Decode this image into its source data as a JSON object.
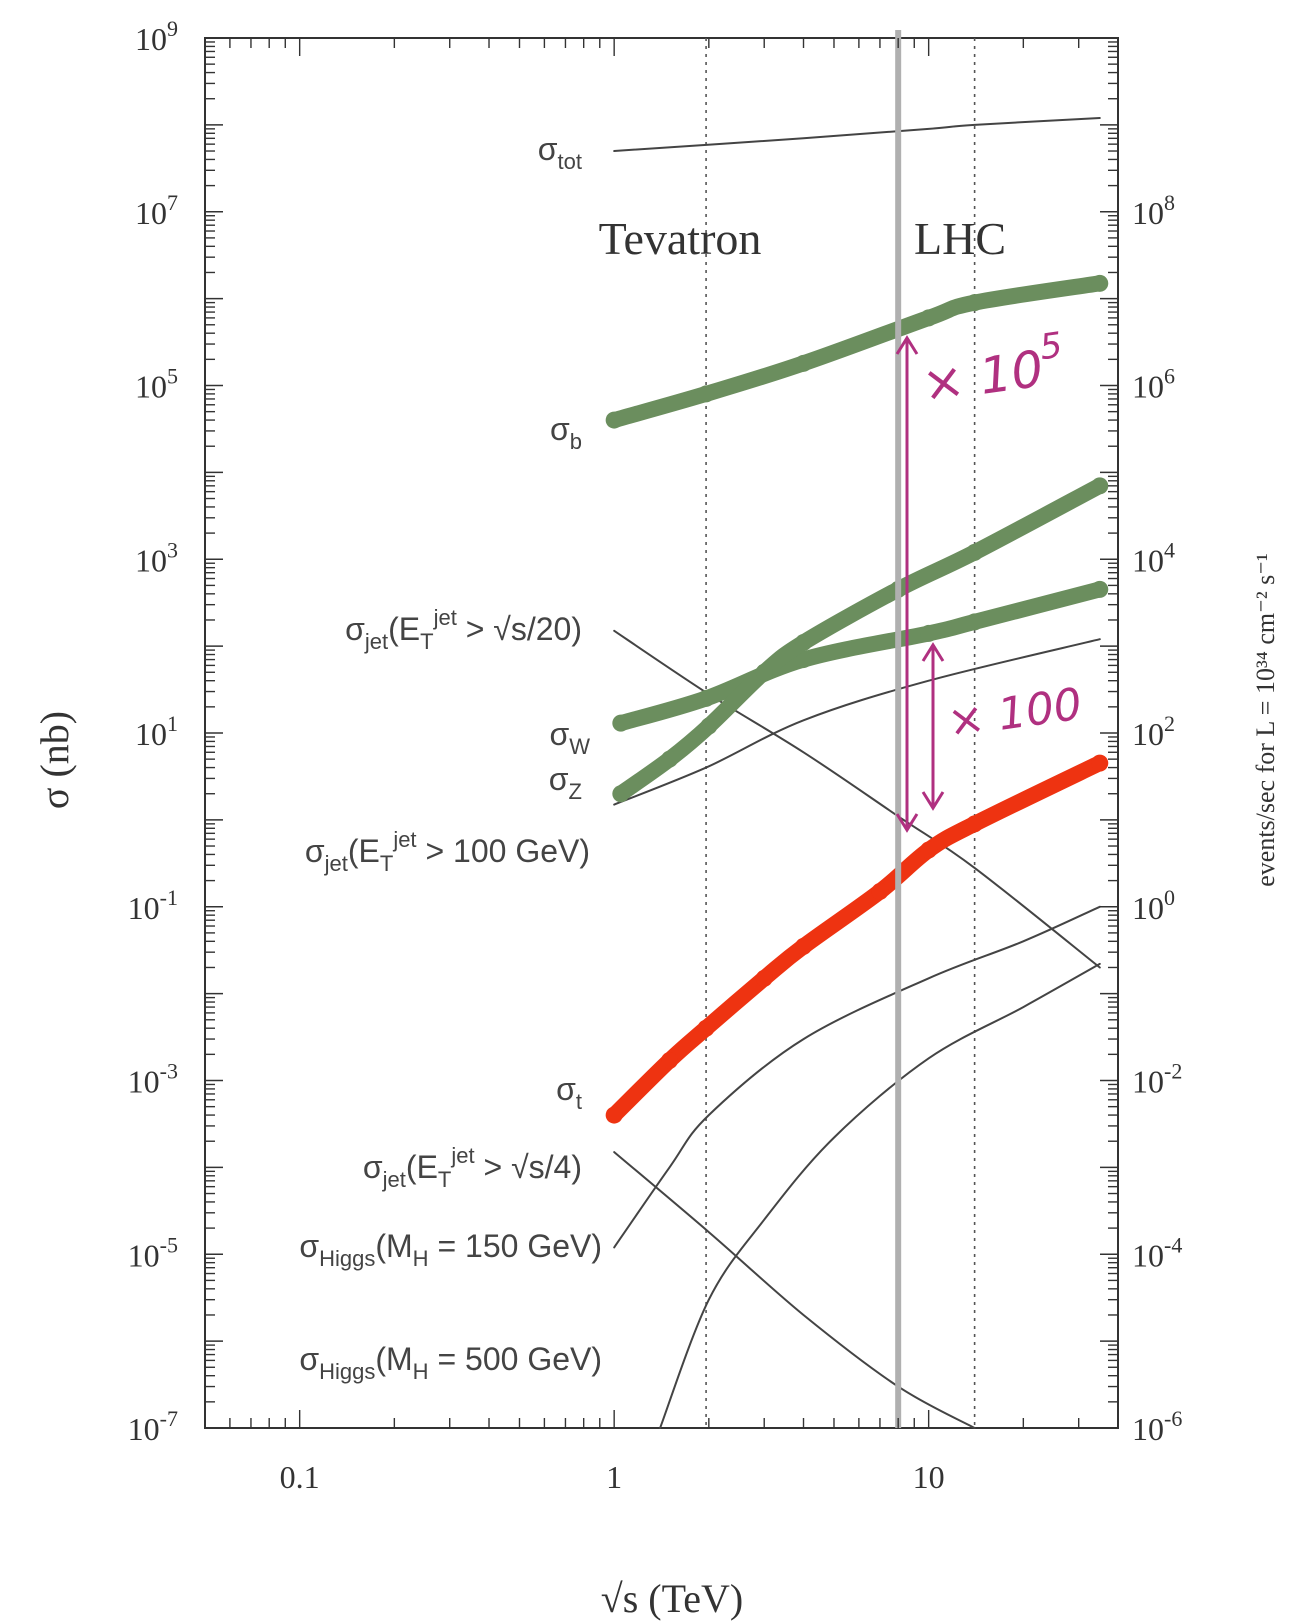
{
  "colors": {
    "axis": "#333333",
    "theory_line": "#444444",
    "green_band": "#6b8e5e",
    "red_band": "#ee3311",
    "annotation": "#b03080",
    "energy_line": "#b0b0b0",
    "divider": "#555555"
  },
  "chart_data": {
    "type": "line",
    "x_scale": "log",
    "y_scale": "log",
    "xlim": [
      0.05,
      40
    ],
    "ylim": [
      1e-07,
      1000000000.0
    ],
    "xlabel": "√s   (TeV)",
    "ylabel": "σ  (nb)",
    "y2label": "events/sec for  L = 10³⁴ cm⁻² s⁻¹",
    "x_ticks": [
      {
        "value": 0.1,
        "label": "0.1"
      },
      {
        "value": 1,
        "label": "1"
      },
      {
        "value": 10,
        "label": "10"
      }
    ],
    "y_ticks": [
      {
        "value": 1000000000.0,
        "base": "10",
        "exp": "9"
      },
      {
        "value": 10000000.0,
        "base": "10",
        "exp": "7"
      },
      {
        "value": 100000.0,
        "base": "10",
        "exp": "5"
      },
      {
        "value": 1000.0,
        "base": "10",
        "exp": "3"
      },
      {
        "value": 10,
        "base": "10",
        "exp": "1"
      },
      {
        "value": 0.1,
        "base": "10",
        "exp": "-1"
      },
      {
        "value": 0.001,
        "base": "10",
        "exp": "-3"
      },
      {
        "value": 1e-05,
        "base": "10",
        "exp": "-5"
      },
      {
        "value": 1e-07,
        "base": "10",
        "exp": "-7"
      }
    ],
    "y2_ticks": [
      {
        "value": 10000000.0,
        "base": "10",
        "exp": "8"
      },
      {
        "value": 100000.0,
        "base": "10",
        "exp": "6"
      },
      {
        "value": 1000.0,
        "base": "10",
        "exp": "4"
      },
      {
        "value": 10,
        "base": "10",
        "exp": "2"
      },
      {
        "value": 0.1,
        "base": "10",
        "exp": "0"
      },
      {
        "value": 0.001,
        "base": "10",
        "exp": "-2"
      },
      {
        "value": 1e-05,
        "base": "10",
        "exp": "-4"
      },
      {
        "value": 1e-07,
        "base": "10",
        "exp": "-6"
      }
    ],
    "regions": [
      {
        "label": "Tevatron",
        "x": 1.96
      },
      {
        "label": "LHC",
        "x": 14
      }
    ],
    "energy_line_x": 8,
    "series": [
      {
        "id": "sigma-tot",
        "style": "thin",
        "points": [
          [
            1,
            50000000.0
          ],
          [
            4,
            70000000.0
          ],
          [
            10,
            90000000.0
          ],
          [
            14,
            100000000.0
          ],
          [
            35,
            120000000.0
          ]
        ]
      },
      {
        "id": "sigma-jet-s20",
        "style": "thin",
        "points": [
          [
            1,
            150
          ],
          [
            2,
            28
          ],
          [
            4,
            6
          ],
          [
            8,
            1.1
          ],
          [
            14,
            0.28
          ],
          [
            35,
            0.02
          ]
        ]
      },
      {
        "id": "sigma-jet-100",
        "style": "thin",
        "points": [
          [
            1,
            1.5
          ],
          [
            1.96,
            4
          ],
          [
            4,
            14
          ],
          [
            10,
            40
          ],
          [
            35,
            120
          ]
        ]
      },
      {
        "id": "sigma-jet-s4",
        "style": "thin",
        "points": [
          [
            1,
            0.00015
          ],
          [
            2,
            1.8e-05
          ],
          [
            4,
            2e-06
          ],
          [
            8,
            3e-07
          ],
          [
            14,
            1e-07
          ]
        ]
      },
      {
        "id": "sigma-higgs-150",
        "style": "thin",
        "points": [
          [
            1,
            1.2e-05
          ],
          [
            1.5,
            0.0001
          ],
          [
            2,
            0.0004
          ],
          [
            4,
            0.003
          ],
          [
            10,
            0.015
          ],
          [
            20,
            0.04
          ],
          [
            35,
            0.1
          ]
        ]
      },
      {
        "id": "sigma-higgs-500",
        "style": "thin",
        "points": [
          [
            1.4,
            1e-07
          ],
          [
            2,
            3e-06
          ],
          [
            3,
            2.5e-05
          ],
          [
            5,
            0.00022
          ],
          [
            10,
            0.0018
          ],
          [
            20,
            0.007
          ],
          [
            35,
            0.022
          ]
        ]
      },
      {
        "id": "sigma-b",
        "style": "green",
        "points": [
          [
            1,
            40000.0
          ],
          [
            1.96,
            80000.0
          ],
          [
            4,
            180000.0
          ],
          [
            10,
            600000.0
          ],
          [
            14,
            900000.0
          ],
          [
            35,
            1500000.0
          ]
        ]
      },
      {
        "id": "sigma-w",
        "style": "green",
        "points": [
          [
            1.05,
            13
          ],
          [
            1.96,
            25
          ],
          [
            4,
            70
          ],
          [
            10,
            140
          ],
          [
            14,
            190
          ],
          [
            35,
            450
          ]
        ]
      },
      {
        "id": "sigma-z",
        "style": "green",
        "points": [
          [
            1.05,
            2
          ],
          [
            1.5,
            5
          ],
          [
            2,
            12
          ],
          [
            3,
            50
          ],
          [
            4,
            110
          ],
          [
            8,
            450
          ],
          [
            14,
            1200
          ],
          [
            35,
            7000
          ]
        ]
      },
      {
        "id": "sigma-t",
        "style": "red",
        "points": [
          [
            1,
            0.0004
          ],
          [
            1.5,
            0.0017
          ],
          [
            1.96,
            0.004
          ],
          [
            3,
            0.015
          ],
          [
            4,
            0.035
          ],
          [
            7,
            0.15
          ],
          [
            10,
            0.45
          ],
          [
            14,
            0.9
          ],
          [
            35,
            4.5
          ]
        ]
      }
    ],
    "series_labels": [
      {
        "id": "sigma-tot",
        "base": "σ",
        "sub": "tot",
        "rest": ""
      },
      {
        "id": "sigma-jet-s20",
        "base": "σ",
        "sub": "jet",
        "rest": "(E",
        "sub2": "T",
        "sup2": "jet",
        "tail": " > √s/20)"
      },
      {
        "id": "sigma-b",
        "base": "σ",
        "sub": "b",
        "rest": ""
      },
      {
        "id": "sigma-w",
        "base": "σ",
        "sub": "W",
        "rest": ""
      },
      {
        "id": "sigma-z",
        "base": "σ",
        "sub": "Z",
        "rest": ""
      },
      {
        "id": "sigma-jet-100",
        "base": "σ",
        "sub": "jet",
        "rest": "(E",
        "sub2": "T",
        "sup2": "jet",
        "tail": " > 100 GeV)"
      },
      {
        "id": "sigma-t",
        "base": "σ",
        "sub": "t",
        "rest": ""
      },
      {
        "id": "sigma-jet-s4",
        "base": "σ",
        "sub": "jet",
        "rest": "(E",
        "sub2": "T",
        "sup2": "jet",
        "tail": " > √s/4)"
      },
      {
        "id": "sigma-higgs-150",
        "base": "σ",
        "sub": "Higgs",
        "rest": "(M",
        "sub2": "H",
        "tail": " = 150 GeV)"
      },
      {
        "id": "sigma-higgs-500",
        "base": "σ",
        "sub": "Higgs",
        "rest": "(M",
        "sub2": "H",
        "tail": " = 500 GeV)"
      }
    ],
    "annotations": [
      {
        "id": "factor-1e5",
        "prefix": "× 10",
        "sup": "5",
        "from_y": 600000.0,
        "to_y": 0.8,
        "x": 9.5
      },
      {
        "id": "factor-100",
        "prefix": "× 100",
        "from_y": 120,
        "to_y": 1.1,
        "x": 12
      }
    ]
  }
}
